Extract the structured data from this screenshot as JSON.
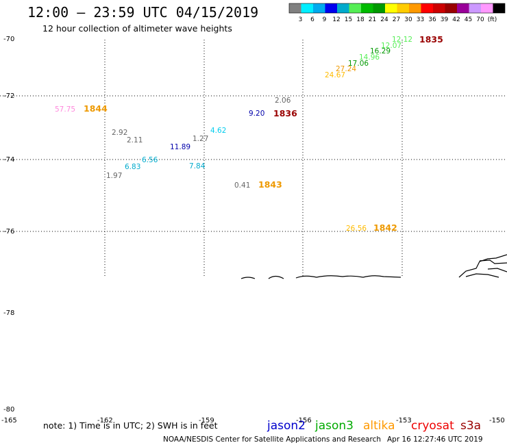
{
  "header": {
    "title": "12:00 — 23:59 UTC 04/15/2019",
    "subtitle": "12 hour collection of altimeter wave heights"
  },
  "color_scale": {
    "colors": [
      "#808080",
      "#00eeff",
      "#00aaee",
      "#0000ee",
      "#00aacc",
      "#55ee55",
      "#00bb00",
      "#009900",
      "#ffff00",
      "#ffcc00",
      "#ff9900",
      "#ff0000",
      "#cc0000",
      "#990000",
      "#990099",
      "#cc99ff",
      "#ff99ff",
      "#000000"
    ],
    "labels": [
      "3",
      "6",
      "9",
      "12",
      "15",
      "18",
      "21",
      "24",
      "27",
      "30",
      "33",
      "36",
      "39",
      "42",
      "45",
      "70",
      "(ft)"
    ]
  },
  "axes": {
    "lat_labels": [
      "-70",
      "-72",
      "-74",
      "-76",
      "-78",
      "-80"
    ],
    "lon_labels": [
      "-165",
      "-162",
      "-159",
      "-156",
      "-153",
      "-150"
    ]
  },
  "observations": [
    {
      "text": "57.75",
      "color": "#ff88dd"
    },
    {
      "text": "2.92",
      "color": "#666666"
    },
    {
      "text": "2.11",
      "color": "#666666"
    },
    {
      "text": "1.97",
      "color": "#666666"
    },
    {
      "text": "6.83",
      "color": "#00aacc"
    },
    {
      "text": "6.56",
      "color": "#00aacc"
    },
    {
      "text": "11.89",
      "color": "#0000aa"
    },
    {
      "text": "1.27",
      "color": "#666666"
    },
    {
      "text": "4.62",
      "color": "#00ccee"
    },
    {
      "text": "7.84",
      "color": "#00aacc"
    },
    {
      "text": "9.20",
      "color": "#0000aa"
    },
    {
      "text": "2.06",
      "color": "#666666"
    },
    {
      "text": "0.41",
      "color": "#666666"
    },
    {
      "text": "12.12",
      "color": "#55ee55"
    },
    {
      "text": "12.07",
      "color": "#55ee55"
    },
    {
      "text": "16.29",
      "color": "#009900"
    },
    {
      "text": "14.96",
      "color": "#55ee55"
    },
    {
      "text": "17.06",
      "color": "#009900"
    },
    {
      "text": "27.24",
      "color": "#ee9900"
    },
    {
      "text": "24.67",
      "color": "#ffbb00"
    },
    {
      "text": "26.56",
      "color": "#ffbb00"
    }
  ],
  "passes": [
    {
      "text": "1844",
      "color": "#ee9900"
    },
    {
      "text": "1836",
      "color": "#990000"
    },
    {
      "text": "1843",
      "color": "#ee9900"
    },
    {
      "text": "1835",
      "color": "#990000"
    },
    {
      "text": "1842",
      "color": "#ee9900"
    }
  ],
  "footer": {
    "note": "note: 1) Time is in UTC; 2) SWH is in feet",
    "satellites": [
      {
        "name": "jason2",
        "color": "#0000cc"
      },
      {
        "name": "jason3",
        "color": "#00aa00"
      },
      {
        "name": "altika",
        "color": "#ff9900"
      },
      {
        "name": "cryosat",
        "color": "#ee0000"
      },
      {
        "name": "s3a",
        "color": "#990000"
      }
    ],
    "credit": "NOAA/NESDIS Center for Satellite Applications and Research",
    "timestamp": "Apr 16 12:27:46 UTC 2019"
  }
}
